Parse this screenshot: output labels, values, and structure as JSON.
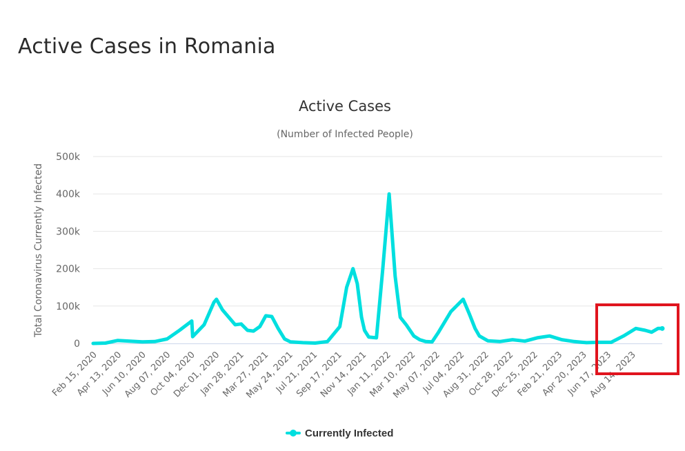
{
  "page": {
    "title": "Active Cases in Romania"
  },
  "legend": {
    "label": "Currently Infected",
    "color": "#00dfdf"
  },
  "chart_data": {
    "type": "line",
    "title": "Active Cases",
    "subtitle": "(Number of Infected People)",
    "xlabel": "",
    "ylabel": "Total Coronavirus Currently Infected",
    "ylim": [
      0,
      500000
    ],
    "yticks": [
      0,
      100000,
      200000,
      300000,
      400000,
      500000
    ],
    "ytick_labels": [
      "0",
      "100k",
      "200k",
      "300k",
      "400k",
      "500k"
    ],
    "xtick_labels": [
      "Feb 15, 2020",
      "Apr 13, 2020",
      "Jun 10, 2020",
      "Aug 07, 2020",
      "Oct 04, 2020",
      "Dec 01, 2020",
      "Jan 28, 2021",
      "Mar 27, 2021",
      "May 24, 2021",
      "Jul 21, 2021",
      "Sep 17, 2021",
      "Nov 14, 2021",
      "Jan 11, 2022",
      "Mar 10, 2022",
      "May 07, 2022",
      "Jul 04, 2022",
      "Aug 31, 2022",
      "Oct 28, 2022",
      "Dec 25, 2022",
      "Feb 21, 2023",
      "Apr 20, 2023",
      "Jun 17, 2023",
      "Aug 14, 2023"
    ],
    "grid": true,
    "legend_position": "bottom-center",
    "series": [
      {
        "name": "Currently Infected",
        "color": "#00dfdf",
        "x": [
          "2020-02-15",
          "2020-03-15",
          "2020-04-13",
          "2020-05-12",
          "2020-06-10",
          "2020-07-09",
          "2020-08-07",
          "2020-09-05",
          "2020-10-04",
          "2020-10-06",
          "2020-11-02",
          "2020-11-25",
          "2020-12-01",
          "2020-12-15",
          "2020-12-30",
          "2021-01-14",
          "2021-01-28",
          "2021-02-12",
          "2021-02-26",
          "2021-03-13",
          "2021-03-27",
          "2021-04-10",
          "2021-04-25",
          "2021-05-10",
          "2021-05-24",
          "2021-06-22",
          "2021-07-21",
          "2021-08-19",
          "2021-09-17",
          "2021-10-03",
          "2021-10-18",
          "2021-10-28",
          "2021-11-07",
          "2021-11-14",
          "2021-11-24",
          "2021-12-12",
          "2021-12-27",
          "2022-01-11",
          "2022-01-25",
          "2022-02-06",
          "2022-02-20",
          "2022-03-10",
          "2022-03-24",
          "2022-04-07",
          "2022-04-22",
          "2022-05-07",
          "2022-06-05",
          "2022-07-04",
          "2022-07-18",
          "2022-08-01",
          "2022-08-11",
          "2022-08-31",
          "2022-09-28",
          "2022-10-28",
          "2022-11-26",
          "2022-12-25",
          "2023-01-23",
          "2023-02-21",
          "2023-03-22",
          "2023-04-10",
          "2023-04-20",
          "2023-05-19",
          "2023-06-17",
          "2023-07-16",
          "2023-08-14",
          "2023-09-05",
          "2023-09-20",
          "2023-10-05",
          "2023-10-15"
        ],
        "values": [
          0,
          1000,
          8000,
          6000,
          4000,
          5000,
          12000,
          35000,
          60000,
          18000,
          50000,
          110000,
          118000,
          90000,
          70000,
          50000,
          52000,
          35000,
          33000,
          45000,
          74000,
          72000,
          40000,
          12000,
          4000,
          2000,
          1000,
          5000,
          45000,
          150000,
          200000,
          160000,
          70000,
          35000,
          17000,
          15000,
          200000,
          400000,
          180000,
          70000,
          50000,
          20000,
          10000,
          5000,
          4000,
          30000,
          85000,
          118000,
          80000,
          40000,
          20000,
          7000,
          5000,
          10000,
          6000,
          15000,
          20000,
          10000,
          5000,
          3000,
          2000,
          3000,
          3000,
          20000,
          40000,
          35000,
          30000,
          40000,
          40000
        ]
      }
    ]
  }
}
